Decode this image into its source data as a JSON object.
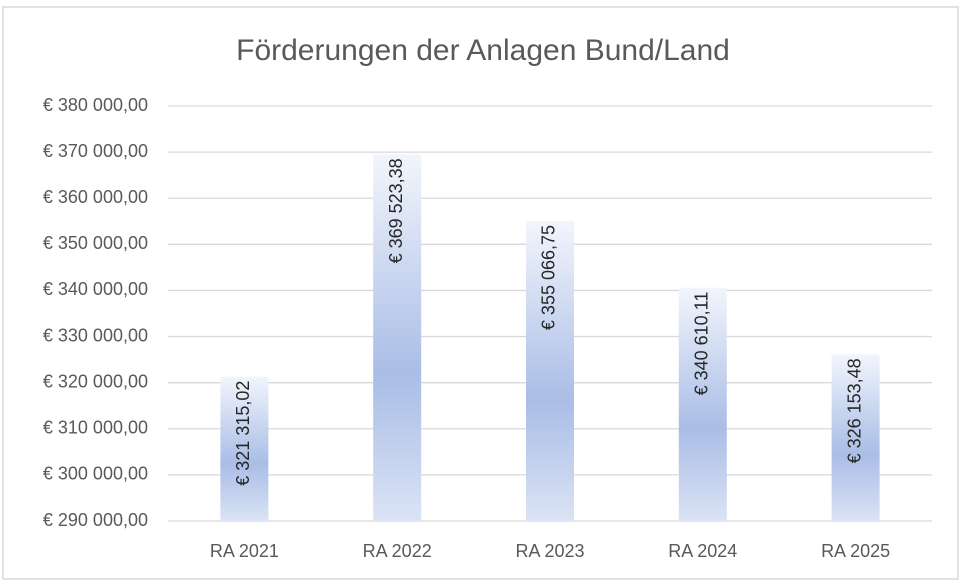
{
  "chart_data": {
    "type": "bar",
    "title": "Förderungen der Anlagen Bund/Land",
    "categories": [
      "RA 2021",
      "RA 2022",
      "RA 2023",
      "RA 2024",
      "RA 2025"
    ],
    "values": [
      321315.02,
      369523.38,
      355066.75,
      340610.11,
      326153.48
    ],
    "value_labels": [
      "€ 321 315,02",
      "€ 369 523,38",
      "€ 355 066,75",
      "€ 340 610,11",
      "€ 326 153,48"
    ],
    "color": "#a9bde6",
    "ylim": [
      290000,
      380000
    ],
    "yticks": [
      {
        "value": 290000,
        "label": "€ 290 000,00"
      },
      {
        "value": 300000,
        "label": "€ 300 000,00"
      },
      {
        "value": 310000,
        "label": "€ 310 000,00"
      },
      {
        "value": 320000,
        "label": "€ 320 000,00"
      },
      {
        "value": 330000,
        "label": "€ 330 000,00"
      },
      {
        "value": 340000,
        "label": "€ 340 000,00"
      },
      {
        "value": 350000,
        "label": "€ 350 000,00"
      },
      {
        "value": 360000,
        "label": "€ 360 000,00"
      },
      {
        "value": 370000,
        "label": "€ 370 000,00"
      },
      {
        "value": 380000,
        "label": "€ 380 000,00"
      }
    ],
    "grid": true
  }
}
